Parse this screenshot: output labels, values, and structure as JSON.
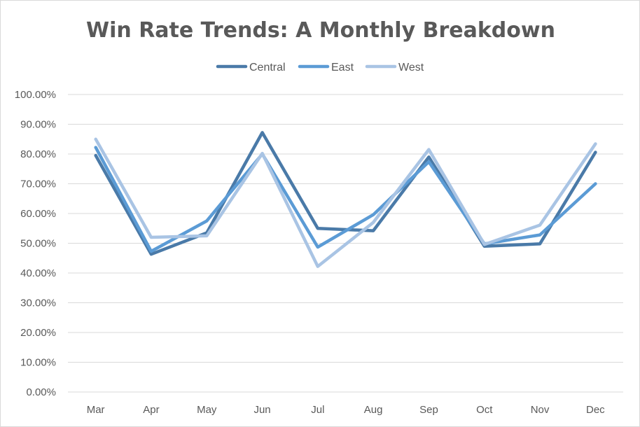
{
  "chart_data": {
    "type": "line",
    "title": "Win Rate Trends: A Monthly Breakdown",
    "xlabel": "",
    "ylabel": "",
    "categories": [
      "Mar",
      "Apr",
      "May",
      "Jun",
      "Jul",
      "Aug",
      "Sep",
      "Oct",
      "Nov",
      "Dec"
    ],
    "ylim": [
      0,
      100
    ],
    "y_ticks": [
      {
        "value": 0,
        "label": "0.00%"
      },
      {
        "value": 10,
        "label": "10.00%"
      },
      {
        "value": 20,
        "label": "20.00%"
      },
      {
        "value": 30,
        "label": "30.00%"
      },
      {
        "value": 40,
        "label": "40.00%"
      },
      {
        "value": 50,
        "label": "50.00%"
      },
      {
        "value": 60,
        "label": "60.00%"
      },
      {
        "value": 70,
        "label": "70.00%"
      },
      {
        "value": 80,
        "label": "80.00%"
      },
      {
        "value": 90,
        "label": "90.00%"
      },
      {
        "value": 100,
        "label": "100.00%"
      }
    ],
    "grid": true,
    "legend_position": "top",
    "series": [
      {
        "name": "Central",
        "color": "#4a7aa8",
        "values": [
          79.5,
          46.3,
          53.5,
          87.2,
          55.0,
          54.2,
          79.0,
          49.0,
          49.8,
          80.6
        ]
      },
      {
        "name": "East",
        "color": "#5b9bd5",
        "values": [
          82.2,
          47.3,
          57.5,
          80.0,
          48.7,
          59.6,
          77.4,
          49.8,
          52.8,
          70.0
        ]
      },
      {
        "name": "West",
        "color": "#a9c4e4",
        "values": [
          85.0,
          52.0,
          52.5,
          80.2,
          42.2,
          57.0,
          81.5,
          49.6,
          56.1,
          83.4
        ]
      }
    ]
  }
}
